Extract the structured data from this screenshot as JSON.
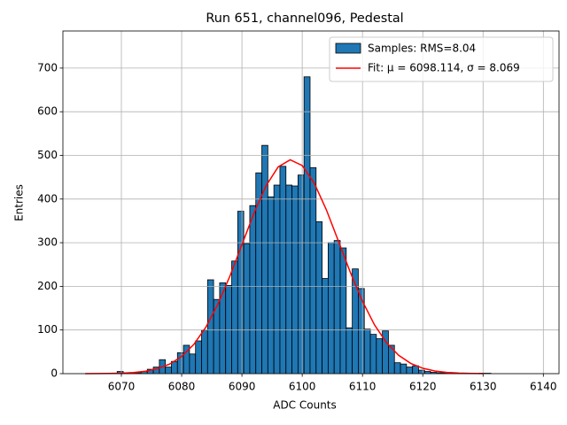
{
  "chart_data": {
    "type": "histogram",
    "title": "Run 651, channel096, Pedestal",
    "xlabel": "ADC Counts",
    "ylabel": "Entries",
    "name": "Samples: RMS=8.04",
    "color": "#1f77b4",
    "edgecolor": "#000000",
    "bins": [
      6064.3,
      6065.3,
      6066.3,
      6067.3,
      6068.3,
      6069.3,
      6070.3,
      6071.3,
      6072.3,
      6073.3,
      6074.3,
      6075.3,
      6076.3,
      6077.3,
      6078.3,
      6079.3,
      6080.3,
      6081.3,
      6082.3,
      6083.3,
      6084.3,
      6085.3,
      6086.3,
      6087.3,
      6088.3,
      6089.3,
      6090.3,
      6091.3,
      6092.3,
      6093.3,
      6094.3,
      6095.3,
      6096.3,
      6097.3,
      6098.3,
      6099.3,
      6100.3,
      6101.3,
      6102.3,
      6103.3,
      6104.3,
      6105.3,
      6106.3,
      6107.3,
      6108.3,
      6109.3,
      6110.3,
      6111.3,
      6112.3,
      6113.3,
      6114.3,
      6115.3,
      6116.3,
      6117.3,
      6118.3,
      6119.3,
      6120.3,
      6121.3,
      6122.3,
      6123.3,
      6124.3,
      6125.3,
      6126.3,
      6127.3,
      6128.3,
      6129.3,
      6130.3,
      6131.3
    ],
    "values": [
      0,
      0,
      0,
      0,
      0,
      5,
      2,
      2,
      2,
      5,
      10,
      15,
      32,
      15,
      28,
      48,
      65,
      45,
      75,
      100,
      215,
      170,
      208,
      202,
      258,
      372,
      298,
      385,
      460,
      523,
      405,
      432,
      475,
      432,
      430,
      455,
      680,
      472,
      348,
      218,
      300,
      305,
      288,
      105,
      240,
      195,
      102,
      90,
      80,
      98,
      65,
      25,
      22,
      15,
      18,
      8,
      5,
      3,
      2,
      2,
      1,
      1,
      1,
      0,
      0,
      1,
      1
    ],
    "fit": {
      "type": "line",
      "name": "Fit: μ = 6098.114, σ = 8.069",
      "color": "#ff0000",
      "x": [
        6064,
        6066,
        6068,
        6070,
        6072,
        6074,
        6076,
        6078,
        6080,
        6082,
        6084,
        6086,
        6088,
        6090,
        6092,
        6094,
        6096,
        6098,
        6100,
        6102,
        6104,
        6106,
        6108,
        6110,
        6112,
        6114,
        6116,
        6118,
        6120,
        6122,
        6124,
        6126,
        6128,
        6130
      ],
      "values": [
        0.06,
        0.18,
        0.46,
        1.13,
        2.6,
        5.6,
        11.5,
        21.9,
        39.4,
        66.7,
        106.1,
        158.8,
        223.4,
        295.5,
        367.7,
        430.3,
        473.5,
        490.0,
        476.8,
        436.3,
        375.5,
        303.9,
        231.3,
        165.6,
        111.5,
        70.6,
        42.0,
        23.5,
        12.4,
        6.1,
        2.9,
        1.25,
        0.51,
        0.2
      ]
    },
    "xlim": [
      6060.3,
      6142.6
    ],
    "ylim": [
      0,
      785
    ],
    "xticks": [
      6070,
      6080,
      6090,
      6100,
      6110,
      6120,
      6130,
      6140
    ],
    "yticks": [
      0,
      100,
      200,
      300,
      400,
      500,
      600,
      700
    ],
    "grid": true,
    "legend": "upper right"
  }
}
